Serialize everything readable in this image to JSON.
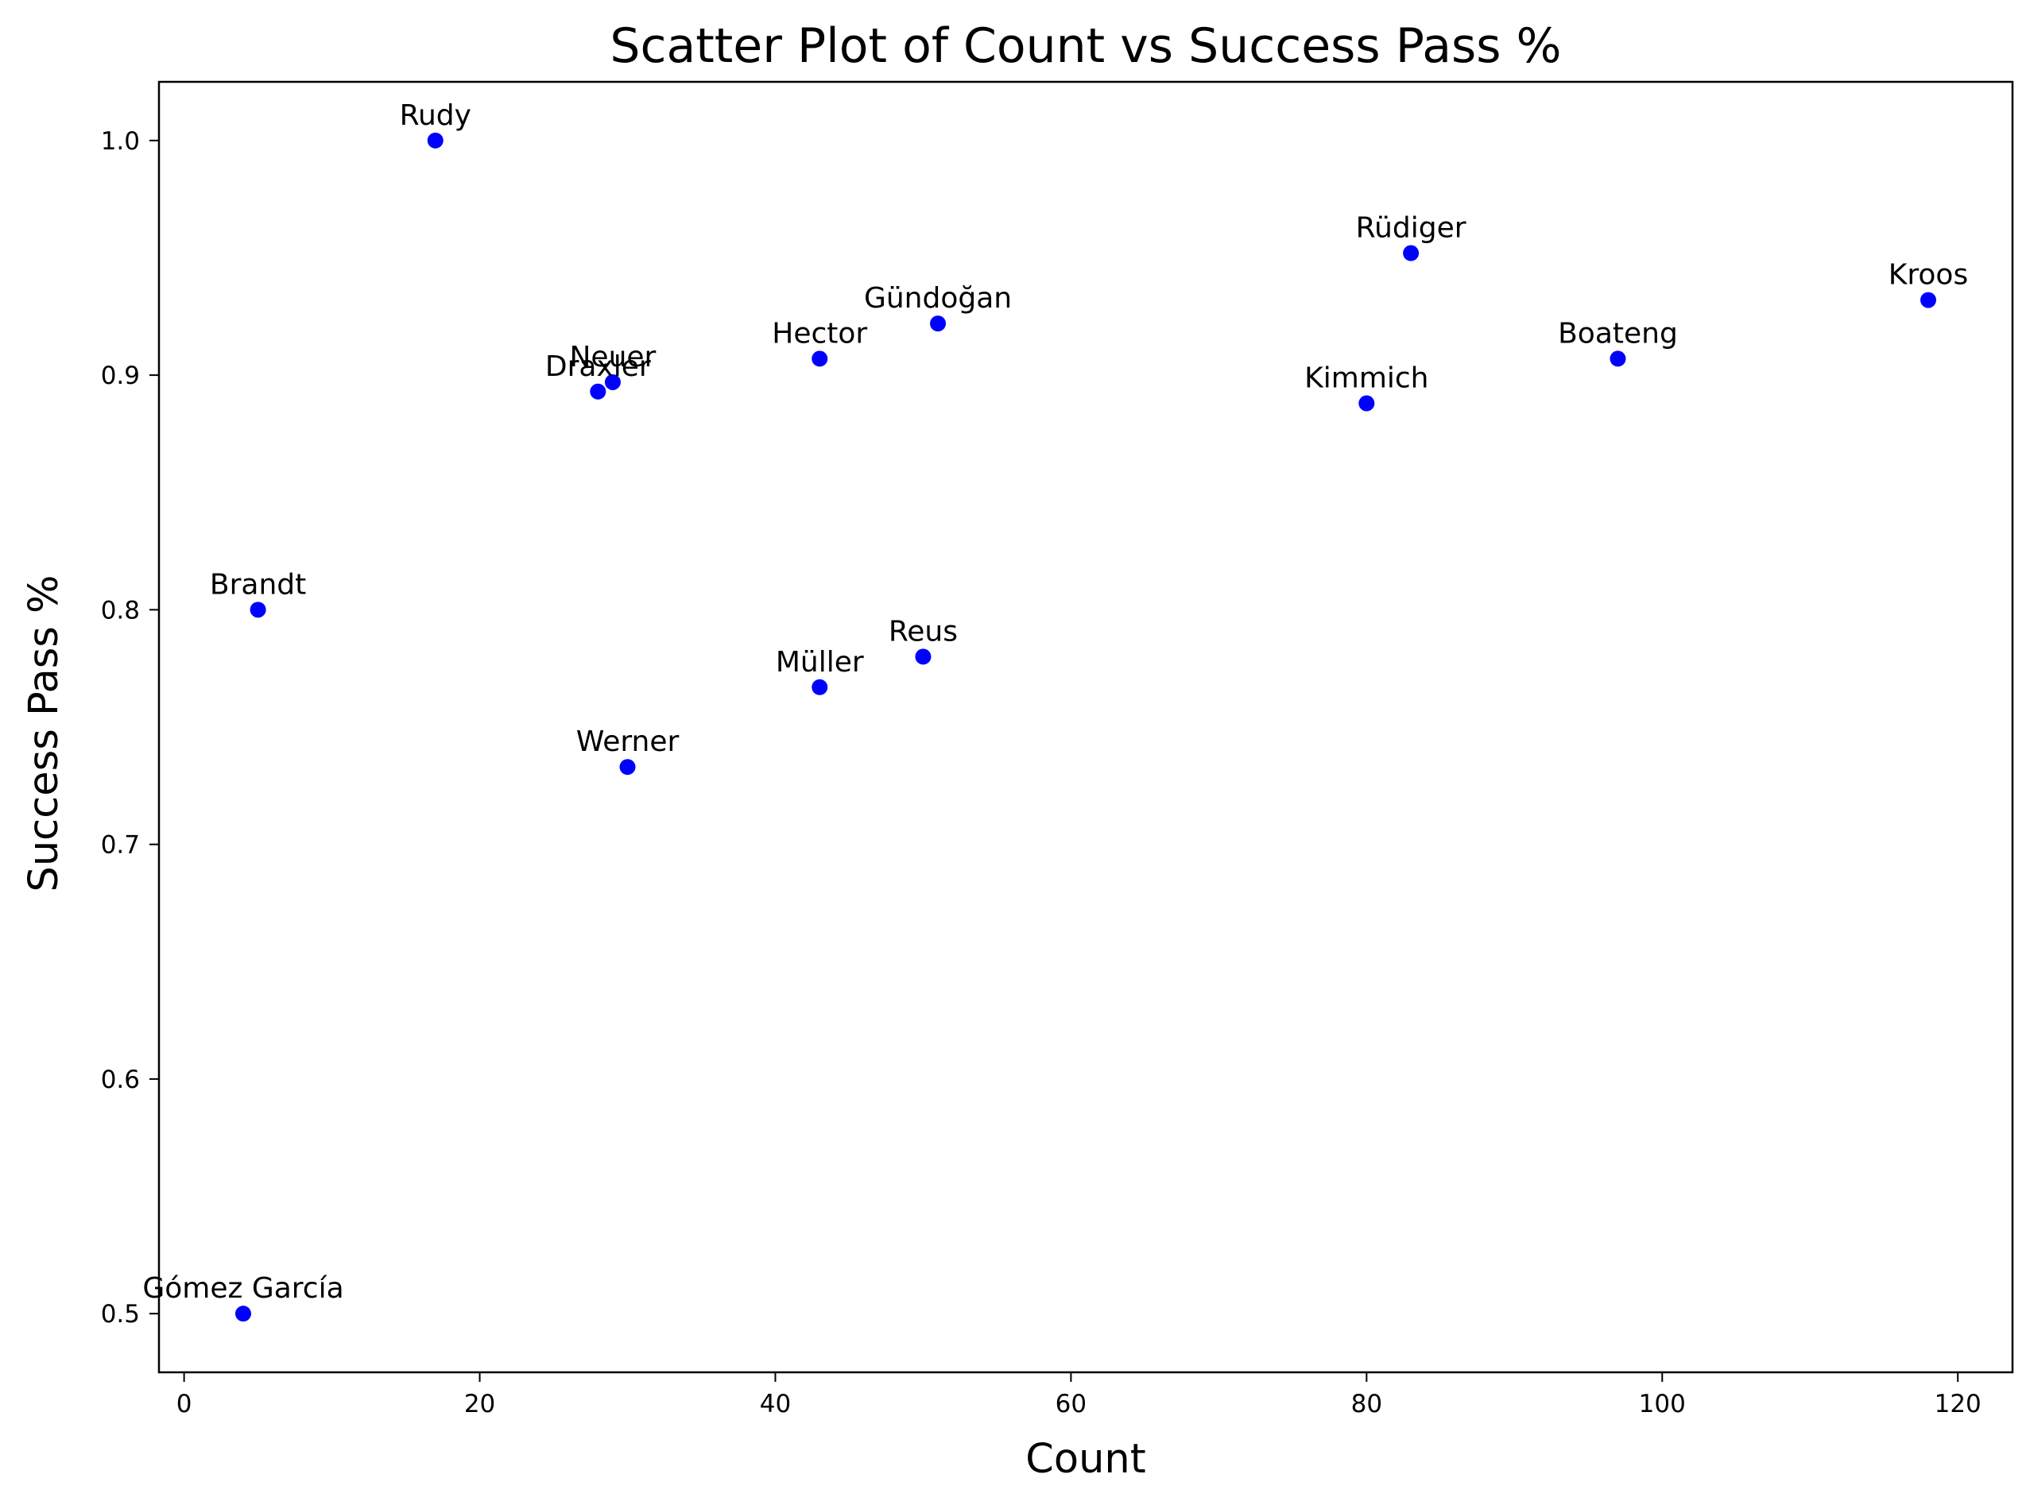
{
  "chart_data": {
    "type": "scatter",
    "title": "Scatter Plot of Count vs Success Pass %",
    "xlabel": "Count",
    "ylabel": "Success Pass %",
    "xlim": [
      -1.7,
      123.7
    ],
    "ylim": [
      0.475,
      1.025
    ],
    "xticks": [
      0,
      20,
      40,
      60,
      80,
      100,
      120
    ],
    "yticks": [
      0.5,
      0.6,
      0.7,
      0.8,
      0.9,
      1.0
    ],
    "xtick_labels": [
      "0",
      "20",
      "40",
      "60",
      "80",
      "100",
      "120"
    ],
    "ytick_labels": [
      "0.5",
      "0.6",
      "0.7",
      "0.8",
      "0.9",
      "1.0"
    ],
    "grid": false,
    "marker_color": "#0000ff",
    "points": [
      {
        "label": "Rudy",
        "x": 17,
        "y": 1.0
      },
      {
        "label": "Rüdiger",
        "x": 83,
        "y": 0.952
      },
      {
        "label": "Kroos",
        "x": 118,
        "y": 0.932
      },
      {
        "label": "Gündoğan",
        "x": 51,
        "y": 0.922
      },
      {
        "label": "Hector",
        "x": 43,
        "y": 0.907
      },
      {
        "label": "Boateng",
        "x": 97,
        "y": 0.907
      },
      {
        "label": "Neuer",
        "x": 29,
        "y": 0.897
      },
      {
        "label": "Draxler",
        "x": 28,
        "y": 0.893
      },
      {
        "label": "Kimmich",
        "x": 80,
        "y": 0.888
      },
      {
        "label": "Brandt",
        "x": 5,
        "y": 0.8
      },
      {
        "label": "Reus",
        "x": 50,
        "y": 0.78
      },
      {
        "label": "Müller",
        "x": 43,
        "y": 0.767
      },
      {
        "label": "Werner",
        "x": 30,
        "y": 0.733
      },
      {
        "label": "Gómez García",
        "x": 4,
        "y": 0.5
      }
    ]
  }
}
